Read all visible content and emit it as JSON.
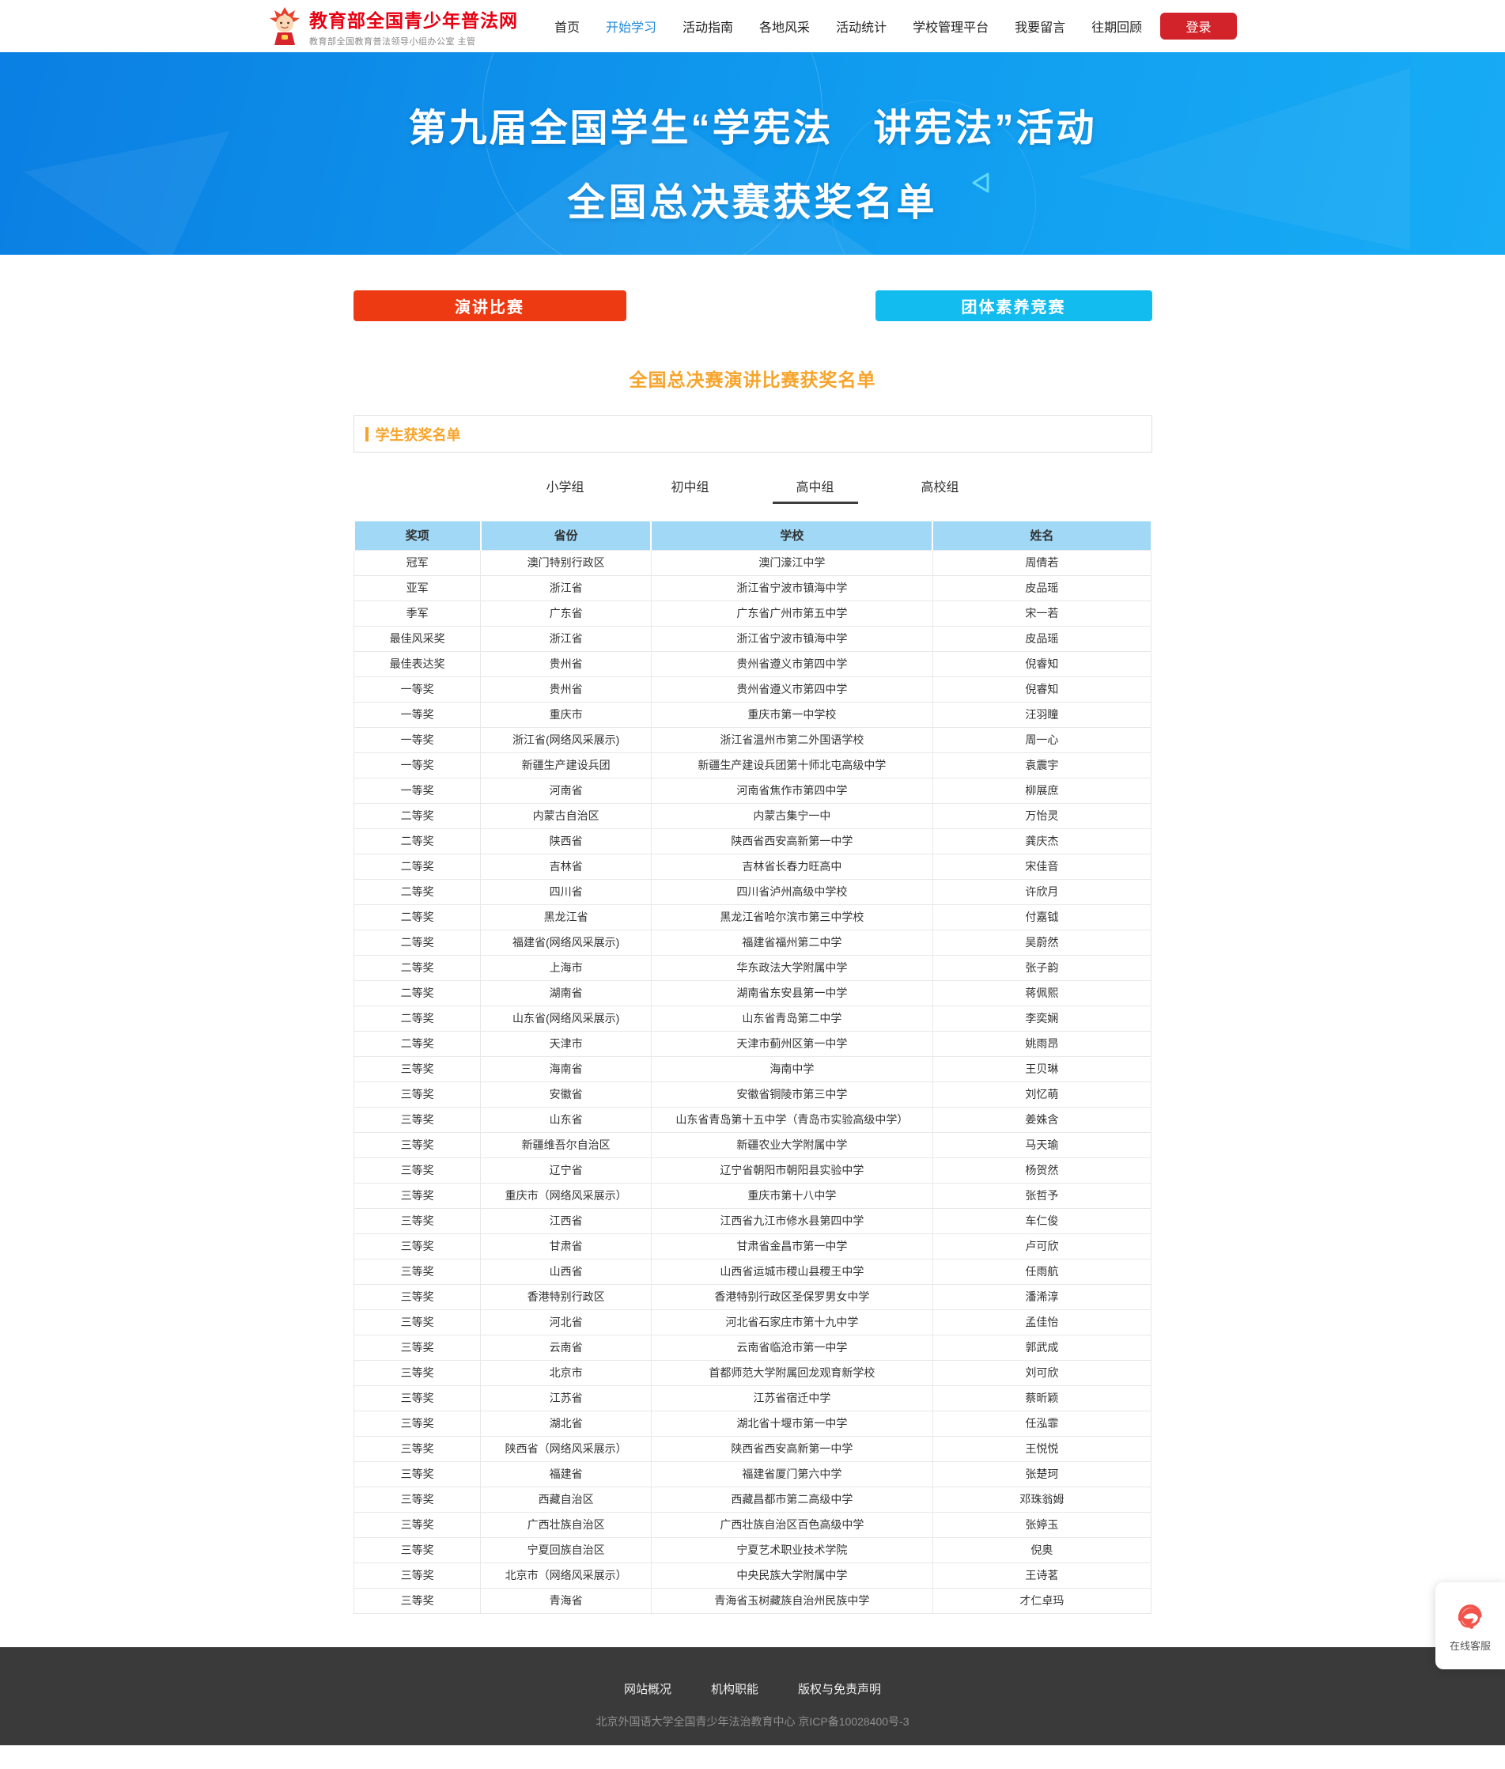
{
  "colors": {
    "brand_red": "#e60012",
    "login_red": "#d2232a",
    "nav_active_blue": "#1e88d7",
    "banner_blue_start": "#0b7fe3",
    "banner_blue_end": "#18acf5",
    "speech_red": "#ee3a12",
    "team_cyan": "#12bcee",
    "heading_orange": "#f7a42b",
    "table_header_blue": "#a0d8f6",
    "footer_bg": "#3a3a3a"
  },
  "header": {
    "site_title": "教育部全国青少年普法网",
    "site_subtitle": "教育部全国教育普法领导小组办公室 主管",
    "nav": [
      {
        "label": "首页",
        "active": false
      },
      {
        "label": "开始学习",
        "active": true
      },
      {
        "label": "活动指南",
        "active": false
      },
      {
        "label": "各地风采",
        "active": false
      },
      {
        "label": "活动统计",
        "active": false
      },
      {
        "label": "学校管理平台",
        "active": false
      },
      {
        "label": "我要留言",
        "active": false
      },
      {
        "label": "往期回顾",
        "active": false
      }
    ],
    "login_label": "登录"
  },
  "banner": {
    "title_line1": "第九届全国学生“学宪法　讲宪法”活动",
    "title_line2": "全国总决赛获奖名单"
  },
  "actions": {
    "speech_button": "演讲比赛",
    "team_button": "团体素养竞赛"
  },
  "content": {
    "page_heading": "全国总决赛演讲比赛获奖名单",
    "section_title": "学生获奖名单",
    "tabs": [
      {
        "label": "小学组",
        "active": false
      },
      {
        "label": "初中组",
        "active": false
      },
      {
        "label": "高中组",
        "active": true
      },
      {
        "label": "高校组",
        "active": false
      }
    ]
  },
  "table": {
    "columns": [
      "奖项",
      "省份",
      "学校",
      "姓名"
    ],
    "rows": [
      [
        "冠军",
        "澳门特别行政区",
        "澳门濠江中学",
        "周倩若"
      ],
      [
        "亚军",
        "浙江省",
        "浙江省宁波市镇海中学",
        "皮品瑶"
      ],
      [
        "季军",
        "广东省",
        "广东省广州市第五中学",
        "宋一若"
      ],
      [
        "最佳风采奖",
        "浙江省",
        "浙江省宁波市镇海中学",
        "皮品瑶"
      ],
      [
        "最佳表达奖",
        "贵州省",
        "贵州省遵义市第四中学",
        "倪睿知"
      ],
      [
        "一等奖",
        "贵州省",
        "贵州省遵义市第四中学",
        "倪睿知"
      ],
      [
        "一等奖",
        "重庆市",
        "重庆市第一中学校",
        "汪羽瞳"
      ],
      [
        "一等奖",
        "浙江省(网络风采展示)",
        "浙江省温州市第二外国语学校",
        "周一心"
      ],
      [
        "一等奖",
        "新疆生产建设兵团",
        "新疆生产建设兵团第十师北屯高级中学",
        "袁震宇"
      ],
      [
        "一等奖",
        "河南省",
        "河南省焦作市第四中学",
        "柳展庶"
      ],
      [
        "二等奖",
        "内蒙古自治区",
        "内蒙古集宁一中",
        "万怡灵"
      ],
      [
        "二等奖",
        "陕西省",
        "陕西省西安高新第一中学",
        "龚庆杰"
      ],
      [
        "二等奖",
        "吉林省",
        "吉林省长春力旺高中",
        "宋佳音"
      ],
      [
        "二等奖",
        "四川省",
        "四川省泸州高级中学校",
        "许欣月"
      ],
      [
        "二等奖",
        "黑龙江省",
        "黑龙江省哈尔滨市第三中学校",
        "付嘉钺"
      ],
      [
        "二等奖",
        "福建省(网络风采展示)",
        "福建省福州第二中学",
        "吴蔚然"
      ],
      [
        "二等奖",
        "上海市",
        "华东政法大学附属中学",
        "张子韵"
      ],
      [
        "二等奖",
        "湖南省",
        "湖南省东安县第一中学",
        "蒋佩熙"
      ],
      [
        "二等奖",
        "山东省(网络风采展示)",
        "山东省青岛第二中学",
        "李奕娴"
      ],
      [
        "二等奖",
        "天津市",
        "天津市蓟州区第一中学",
        "姚雨昂"
      ],
      [
        "三等奖",
        "海南省",
        "海南中学",
        "王贝琳"
      ],
      [
        "三等奖",
        "安徽省",
        "安徽省铜陵市第三中学",
        "刘忆萌"
      ],
      [
        "三等奖",
        "山东省",
        "山东省青岛第十五中学（青岛市实验高级中学）",
        "姜姝含"
      ],
      [
        "三等奖",
        "新疆维吾尔自治区",
        "新疆农业大学附属中学",
        "马天瑜"
      ],
      [
        "三等奖",
        "辽宁省",
        "辽宁省朝阳市朝阳县实验中学",
        "杨贺然"
      ],
      [
        "三等奖",
        "重庆市（网络风采展示）",
        "重庆市第十八中学",
        "张哲予"
      ],
      [
        "三等奖",
        "江西省",
        "江西省九江市修水县第四中学",
        "车仁俊"
      ],
      [
        "三等奖",
        "甘肃省",
        "甘肃省金昌市第一中学",
        "卢可欣"
      ],
      [
        "三等奖",
        "山西省",
        "山西省运城市稷山县稷王中学",
        "任雨航"
      ],
      [
        "三等奖",
        "香港特别行政区",
        "香港特别行政区圣保罗男女中学",
        "潘浠淳"
      ],
      [
        "三等奖",
        "河北省",
        "河北省石家庄市第十九中学",
        "孟佳怡"
      ],
      [
        "三等奖",
        "云南省",
        "云南省临沧市第一中学",
        "郭武成"
      ],
      [
        "三等奖",
        "北京市",
        "首都师范大学附属回龙观育新学校",
        "刘可欣"
      ],
      [
        "三等奖",
        "江苏省",
        "江苏省宿迁中学",
        "蔡昕颖"
      ],
      [
        "三等奖",
        "湖北省",
        "湖北省十堰市第一中学",
        "任泓霏"
      ],
      [
        "三等奖",
        "陕西省（网络风采展示）",
        "陕西省西安高新第一中学",
        "王悦悦"
      ],
      [
        "三等奖",
        "福建省",
        "福建省厦门第六中学",
        "张楚珂"
      ],
      [
        "三等奖",
        "西藏自治区",
        "西藏昌都市第二高级中学",
        "邓珠翁姆"
      ],
      [
        "三等奖",
        "广西壮族自治区",
        "广西壮族自治区百色高级中学",
        "张婷玉"
      ],
      [
        "三等奖",
        "宁夏回族自治区",
        "宁夏艺术职业技术学院",
        "倪奥"
      ],
      [
        "三等奖",
        "北京市（网络风采展示）",
        "中央民族大学附属中学",
        "王诗茗"
      ],
      [
        "三等奖",
        "青海省",
        "青海省玉树藏族自治州民族中学",
        "才仁卓玛"
      ]
    ]
  },
  "footer": {
    "links": [
      "网站概况",
      "机构职能",
      "版权与免责声明"
    ],
    "copyright": "北京外国语大学全国青少年法治教育中心 京ICP备10028400号-3"
  },
  "widget": {
    "label": "在线客服"
  }
}
